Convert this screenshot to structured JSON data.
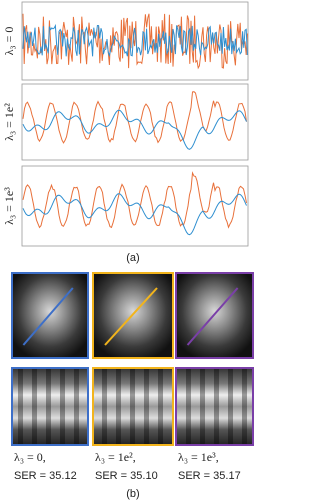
{
  "figure": {
    "panel_a": {
      "label": "(a)",
      "plots": [
        {
          "y_label": "λ₃ = 0"
        },
        {
          "y_label": "λ₃ = 1e²"
        },
        {
          "y_label": "λ₃ = 1e³"
        }
      ]
    },
    "panel_b": {
      "label": "(b)",
      "columns": [
        {
          "parameter": "λ₃ = 0,",
          "metric": "SER = 35.12",
          "color": "#3d6fc8"
        },
        {
          "parameter": "λ₃ = 1e²,",
          "metric": "SER = 35.10",
          "color": "#f2b41c"
        },
        {
          "parameter": "λ₃ = 1e³,",
          "metric": "SER = 35.17",
          "color": "#7a3fa8"
        }
      ]
    }
  }
}
